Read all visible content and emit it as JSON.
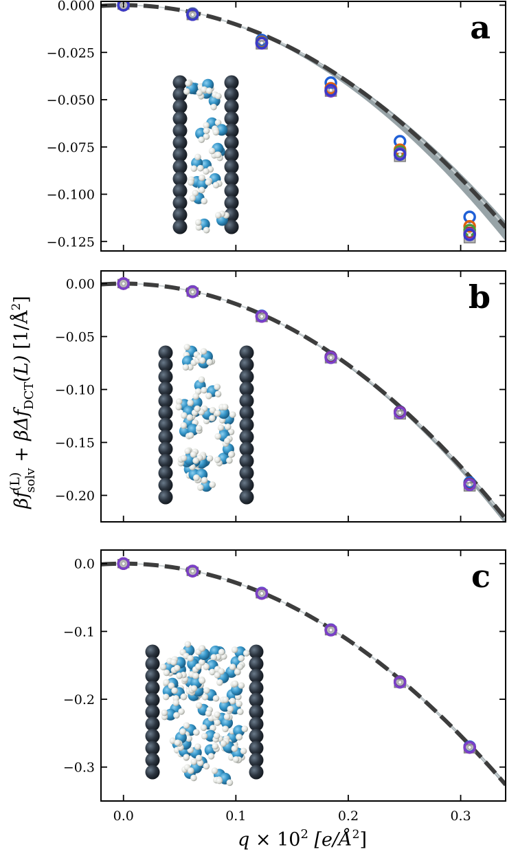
{
  "chart_data": [
    {
      "panel_label": "a",
      "type": "scatter",
      "xlim": [
        -0.02,
        0.34
      ],
      "ylim": [
        -0.13,
        0.002
      ],
      "xticks": [
        0.0,
        0.1,
        0.2,
        0.3
      ],
      "yticks": [
        0.0,
        -0.025,
        -0.05,
        -0.075,
        -0.1,
        -0.125
      ],
      "ytick_labels": [
        "0.000",
        "−0.025",
        "−0.050",
        "−0.075",
        "−0.100",
        "−0.125"
      ],
      "show_xtick_labels": false,
      "x": [
        0.0,
        0.0615,
        0.123,
        0.1845,
        0.246,
        0.308
      ],
      "fit_curve": {
        "style": "dashed",
        "color": "#3d3d3d",
        "coef": -1.017
      },
      "fit_band": {
        "color": "#97a3a7",
        "coef_low": -0.99,
        "coef_high": -1.08
      },
      "series": [
        {
          "color": "#1f5fd6",
          "y": [
            0.0,
            -0.0045,
            -0.0185,
            -0.041,
            -0.072,
            -0.112
          ]
        },
        {
          "color": "#e06010",
          "y": [
            0.0,
            -0.0048,
            -0.0195,
            -0.044,
            -0.0765,
            -0.117
          ]
        },
        {
          "color": "#b02020",
          "y": [
            0.0,
            -0.005,
            -0.02,
            -0.0455,
            -0.078,
            -0.1205
          ]
        },
        {
          "color": "#4a9a3a",
          "y": [
            0.0,
            -0.0049,
            -0.0198,
            -0.045,
            -0.0775,
            -0.119
          ]
        },
        {
          "color": "#7a40c8",
          "y": [
            0.0,
            -0.005,
            -0.0202,
            -0.0455,
            -0.0785,
            -0.121
          ]
        },
        {
          "color": "#3a3ac8",
          "y": [
            0.0,
            -0.005,
            -0.02,
            -0.045,
            -0.079,
            -0.1215
          ]
        }
      ],
      "reference_points": {
        "color": "#7f7f7f",
        "y": [
          0.0,
          -0.0055,
          -0.021,
          -0.046,
          -0.0805,
          -0.1235
        ]
      }
    },
    {
      "panel_label": "b",
      "type": "scatter",
      "xlim": [
        -0.02,
        0.34
      ],
      "ylim": [
        -0.225,
        0.012
      ],
      "xticks": [
        0.0,
        0.1,
        0.2,
        0.3
      ],
      "yticks": [
        0.0,
        -0.05,
        -0.1,
        -0.15,
        -0.2
      ],
      "ytick_labels": [
        "0.00",
        "−0.05",
        "−0.10",
        "−0.15",
        "−0.20"
      ],
      "show_xtick_labels": false,
      "x": [
        0.0,
        0.0615,
        0.123,
        0.1845,
        0.246,
        0.308
      ],
      "fit_curve": {
        "style": "dashed",
        "color": "#3d3d3d",
        "coef": -1.92
      },
      "fit_band": {
        "color": "#97a3a7",
        "coef_low": -1.9,
        "coef_high": -1.97
      },
      "series": [
        {
          "color": "#1f5fd6",
          "y": [
            0.0,
            -0.0075,
            -0.0305,
            -0.069,
            -0.121,
            -0.188
          ]
        },
        {
          "color": "#b02020",
          "y": [
            0.0,
            -0.0077,
            -0.031,
            -0.0695,
            -0.1215,
            -0.1895
          ]
        },
        {
          "color": "#7a40c8",
          "y": [
            0.0,
            -0.0078,
            -0.031,
            -0.07,
            -0.122,
            -0.19
          ]
        }
      ],
      "reference_points": {
        "color": "#7f7f7f",
        "y": [
          0.0,
          -0.008,
          -0.032,
          -0.071,
          -0.124,
          -0.192
        ]
      }
    },
    {
      "panel_label": "c",
      "type": "scatter",
      "xlim": [
        -0.02,
        0.34
      ],
      "ylim": [
        -0.35,
        0.02
      ],
      "xticks": [
        0.0,
        0.1,
        0.2,
        0.3
      ],
      "xtick_labels": [
        "0.0",
        "0.1",
        "0.2",
        "0.3"
      ],
      "yticks": [
        0.0,
        -0.1,
        -0.2,
        -0.3
      ],
      "ytick_labels": [
        "0.0",
        "−0.1",
        "−0.2",
        "−0.3"
      ],
      "show_xtick_labels": true,
      "x": [
        0.0,
        0.0615,
        0.123,
        0.1845,
        0.246,
        0.308
      ],
      "fit_curve": {
        "style": "dashed",
        "color": "#3d3d3d",
        "coef": -2.82
      },
      "fit_band": {
        "color": "#97a3a7",
        "coef_low": -2.79,
        "coef_high": -2.85
      },
      "series": [
        {
          "color": "#1f5fd6",
          "y": [
            0.0,
            -0.011,
            -0.0435,
            -0.0975,
            -0.174,
            -0.27
          ]
        },
        {
          "color": "#b02020",
          "y": [
            0.0,
            -0.011,
            -0.044,
            -0.098,
            -0.1745,
            -0.271
          ]
        },
        {
          "color": "#7a40c8",
          "y": [
            0.0,
            -0.011,
            -0.044,
            -0.098,
            -0.175,
            -0.271
          ]
        }
      ],
      "reference_points": {
        "color": "#7f7f7f",
        "y": [
          0.0,
          -0.0115,
          -0.0445,
          -0.099,
          -0.1765,
          -0.273
        ]
      }
    }
  ],
  "xlabel_main": "q",
  "xlabel_rest": " × 10",
  "xlabel_sup": "2",
  "xlabel_unit": " [e/Å",
  "xlabel_unit_sup": "2",
  "xlabel_close": "]",
  "ylabel_text": "βf",
  "ylabel_sup": "(L)",
  "ylabel_sub": "solv",
  "ylabel_rest": " + βΔf",
  "ylabel_sub2": "DCT",
  "ylabel_arg": "(L)",
  "ylabel_unit": " [1/Å",
  "ylabel_unit_sup": "2",
  "ylabel_close": "]"
}
